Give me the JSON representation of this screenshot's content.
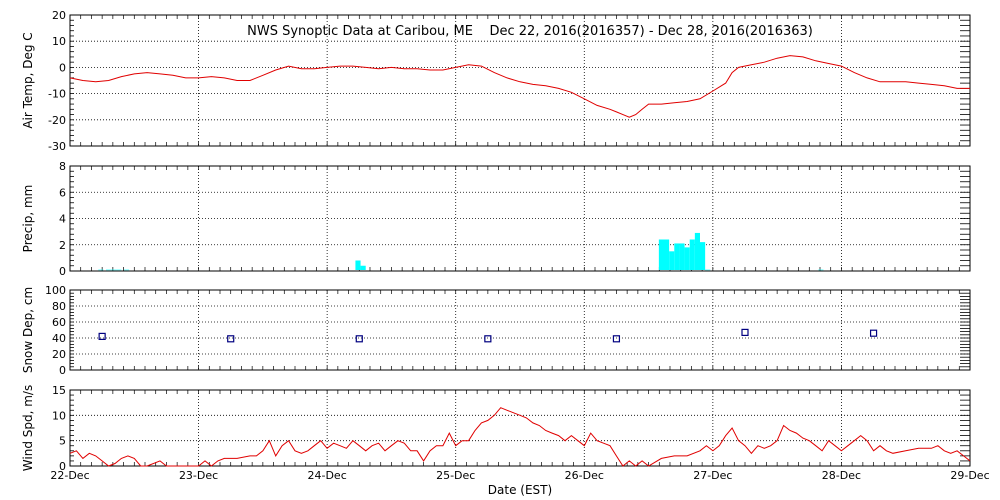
{
  "figure": {
    "title": "NWS Synoptic Data at Caribou, ME    Dec 22, 2016(2016357) - Dec 28, 2016(2016363)",
    "xlabel": "Date (EST)",
    "x_ticks": [
      "22-Dec",
      "23-Dec",
      "24-Dec",
      "25-Dec",
      "26-Dec",
      "27-Dec",
      "28-Dec",
      "29-Dec"
    ]
  },
  "chart_data": [
    {
      "type": "line",
      "ylabel": "Air Temp, Deg C",
      "xlim": [
        0,
        7
      ],
      "ylim": [
        -30,
        20
      ],
      "yticks": [
        -30,
        -20,
        -10,
        0,
        10,
        20
      ],
      "grid": true,
      "color": "#e00000",
      "points": [
        [
          0,
          -4
        ],
        [
          0.1,
          -5
        ],
        [
          0.2,
          -5.5
        ],
        [
          0.3,
          -5
        ],
        [
          0.4,
          -3.5
        ],
        [
          0.5,
          -2.5
        ],
        [
          0.6,
          -2
        ],
        [
          0.7,
          -2.5
        ],
        [
          0.8,
          -3
        ],
        [
          0.9,
          -4
        ],
        [
          1.0,
          -4
        ],
        [
          1.1,
          -3.5
        ],
        [
          1.2,
          -4
        ],
        [
          1.3,
          -5
        ],
        [
          1.4,
          -5
        ],
        [
          1.5,
          -3
        ],
        [
          1.6,
          -1
        ],
        [
          1.7,
          0.5
        ],
        [
          1.8,
          -0.5
        ],
        [
          1.9,
          -0.5
        ],
        [
          2.0,
          0
        ],
        [
          2.1,
          0.5
        ],
        [
          2.2,
          0.5
        ],
        [
          2.3,
          0
        ],
        [
          2.4,
          -0.5
        ],
        [
          2.5,
          0
        ],
        [
          2.6,
          -0.5
        ],
        [
          2.7,
          -0.5
        ],
        [
          2.8,
          -1
        ],
        [
          2.9,
          -1
        ],
        [
          3.0,
          0
        ],
        [
          3.1,
          1
        ],
        [
          3.2,
          0.5
        ],
        [
          3.3,
          -2
        ],
        [
          3.4,
          -4
        ],
        [
          3.5,
          -5.5
        ],
        [
          3.6,
          -6.5
        ],
        [
          3.7,
          -7
        ],
        [
          3.8,
          -8
        ],
        [
          3.9,
          -9.5
        ],
        [
          4.0,
          -12
        ],
        [
          4.1,
          -14.5
        ],
        [
          4.2,
          -16
        ],
        [
          4.25,
          -17
        ],
        [
          4.3,
          -18
        ],
        [
          4.35,
          -19
        ],
        [
          4.4,
          -18
        ],
        [
          4.45,
          -16
        ],
        [
          4.5,
          -14
        ],
        [
          4.6,
          -14
        ],
        [
          4.7,
          -13.5
        ],
        [
          4.8,
          -13
        ],
        [
          4.9,
          -12
        ],
        [
          5.0,
          -9
        ],
        [
          5.1,
          -6
        ],
        [
          5.15,
          -2
        ],
        [
          5.2,
          0
        ],
        [
          5.3,
          1
        ],
        [
          5.4,
          2
        ],
        [
          5.5,
          3.5
        ],
        [
          5.6,
          4.5
        ],
        [
          5.7,
          4
        ],
        [
          5.8,
          2.5
        ],
        [
          5.9,
          1.5
        ],
        [
          6.0,
          0.5
        ],
        [
          6.1,
          -2
        ],
        [
          6.2,
          -4
        ],
        [
          6.3,
          -5.5
        ],
        [
          6.4,
          -5.5
        ],
        [
          6.5,
          -5.5
        ],
        [
          6.6,
          -6
        ],
        [
          6.7,
          -6.5
        ],
        [
          6.8,
          -7
        ],
        [
          6.9,
          -8
        ],
        [
          7.0,
          -8
        ]
      ]
    },
    {
      "type": "bar",
      "ylabel": "Precip, mm",
      "xlim": [
        0,
        7
      ],
      "ylim": [
        0,
        8
      ],
      "yticks": [
        0,
        2,
        4,
        6,
        8
      ],
      "grid": true,
      "color": "#00ffff",
      "bar_width": 0.04,
      "bars": [
        [
          0.22,
          0.1
        ],
        [
          0.28,
          0.1
        ],
        [
          0.32,
          0.1
        ],
        [
          0.36,
          0.1
        ],
        [
          0.42,
          0.1
        ],
        [
          2.22,
          0.8
        ],
        [
          2.26,
          0.4
        ],
        [
          4.58,
          2.4
        ],
        [
          4.62,
          2.4
        ],
        [
          4.66,
          1.5
        ],
        [
          4.7,
          2.1
        ],
        [
          4.74,
          2.1
        ],
        [
          4.78,
          1.8
        ],
        [
          4.82,
          2.4
        ],
        [
          4.86,
          2.9
        ],
        [
          4.9,
          2.2
        ],
        [
          4.94,
          0.1
        ],
        [
          5.82,
          0.1
        ]
      ]
    },
    {
      "type": "scatter",
      "ylabel": "Snow Dep, cm",
      "xlim": [
        0,
        7
      ],
      "ylim": [
        0,
        100
      ],
      "yticks": [
        0,
        20,
        40,
        60,
        80,
        100
      ],
      "grid": true,
      "color": "#000080",
      "marker": "square",
      "points": [
        [
          0.25,
          42
        ],
        [
          1.25,
          39
        ],
        [
          2.25,
          39
        ],
        [
          3.25,
          39
        ],
        [
          4.25,
          39
        ],
        [
          5.25,
          47
        ],
        [
          6.25,
          46
        ]
      ]
    },
    {
      "type": "line",
      "ylabel": "Wind Spd, m/s",
      "xlim": [
        0,
        7
      ],
      "ylim": [
        0,
        15
      ],
      "yticks": [
        0,
        5,
        10,
        15
      ],
      "grid": true,
      "color": "#e00000",
      "points": [
        [
          0,
          2.5
        ],
        [
          0.05,
          3
        ],
        [
          0.1,
          1.5
        ],
        [
          0.15,
          2.5
        ],
        [
          0.2,
          2
        ],
        [
          0.25,
          1
        ],
        [
          0.3,
          0
        ],
        [
          0.35,
          0.5
        ],
        [
          0.4,
          1.5
        ],
        [
          0.45,
          2
        ],
        [
          0.5,
          1.5
        ],
        [
          0.55,
          0
        ],
        [
          0.6,
          0
        ],
        [
          0.7,
          1
        ],
        [
          0.75,
          0
        ],
        [
          0.8,
          0
        ],
        [
          0.9,
          0
        ],
        [
          1.0,
          0
        ],
        [
          1.05,
          1
        ],
        [
          1.1,
          0
        ],
        [
          1.15,
          1
        ],
        [
          1.2,
          1.5
        ],
        [
          1.3,
          1.5
        ],
        [
          1.4,
          2
        ],
        [
          1.45,
          2
        ],
        [
          1.5,
          3
        ],
        [
          1.55,
          5
        ],
        [
          1.6,
          2
        ],
        [
          1.65,
          4
        ],
        [
          1.7,
          5
        ],
        [
          1.75,
          3
        ],
        [
          1.8,
          2.5
        ],
        [
          1.85,
          3
        ],
        [
          1.9,
          4
        ],
        [
          1.95,
          5
        ],
        [
          2.0,
          3.5
        ],
        [
          2.05,
          4.5
        ],
        [
          2.1,
          4
        ],
        [
          2.15,
          3.5
        ],
        [
          2.2,
          5
        ],
        [
          2.25,
          4
        ],
        [
          2.3,
          3
        ],
        [
          2.35,
          4
        ],
        [
          2.4,
          4.5
        ],
        [
          2.45,
          3
        ],
        [
          2.5,
          4
        ],
        [
          2.55,
          5
        ],
        [
          2.6,
          4.5
        ],
        [
          2.65,
          3
        ],
        [
          2.7,
          3
        ],
        [
          2.75,
          1
        ],
        [
          2.8,
          3
        ],
        [
          2.85,
          4
        ],
        [
          2.9,
          4
        ],
        [
          2.95,
          6.5
        ],
        [
          3.0,
          4
        ],
        [
          3.05,
          5
        ],
        [
          3.1,
          5
        ],
        [
          3.15,
          7
        ],
        [
          3.2,
          8.5
        ],
        [
          3.25,
          9
        ],
        [
          3.3,
          10
        ],
        [
          3.35,
          11.5
        ],
        [
          3.4,
          11
        ],
        [
          3.45,
          10.5
        ],
        [
          3.5,
          10
        ],
        [
          3.55,
          9.5
        ],
        [
          3.6,
          8.5
        ],
        [
          3.65,
          8
        ],
        [
          3.7,
          7
        ],
        [
          3.75,
          6.5
        ],
        [
          3.8,
          6
        ],
        [
          3.85,
          5
        ],
        [
          3.9,
          6
        ],
        [
          3.95,
          5
        ],
        [
          4.0,
          4
        ],
        [
          4.05,
          6.5
        ],
        [
          4.1,
          5
        ],
        [
          4.15,
          4.5
        ],
        [
          4.2,
          4
        ],
        [
          4.25,
          2
        ],
        [
          4.3,
          0
        ],
        [
          4.35,
          1
        ],
        [
          4.4,
          0
        ],
        [
          4.45,
          1
        ],
        [
          4.5,
          0
        ],
        [
          4.6,
          1.5
        ],
        [
          4.7,
          2
        ],
        [
          4.8,
          2
        ],
        [
          4.9,
          3
        ],
        [
          4.95,
          4
        ],
        [
          5.0,
          3
        ],
        [
          5.05,
          4
        ],
        [
          5.1,
          6
        ],
        [
          5.15,
          7.5
        ],
        [
          5.2,
          5
        ],
        [
          5.25,
          4
        ],
        [
          5.3,
          2.5
        ],
        [
          5.35,
          4
        ],
        [
          5.4,
          3.5
        ],
        [
          5.45,
          4
        ],
        [
          5.5,
          5
        ],
        [
          5.55,
          8
        ],
        [
          5.6,
          7
        ],
        [
          5.65,
          6.5
        ],
        [
          5.7,
          5.5
        ],
        [
          5.75,
          5
        ],
        [
          5.8,
          4
        ],
        [
          5.85,
          3
        ],
        [
          5.9,
          5
        ],
        [
          5.95,
          4
        ],
        [
          6.0,
          3
        ],
        [
          6.05,
          4
        ],
        [
          6.1,
          5
        ],
        [
          6.15,
          6
        ],
        [
          6.2,
          5
        ],
        [
          6.25,
          3
        ],
        [
          6.3,
          4
        ],
        [
          6.35,
          3
        ],
        [
          6.4,
          2.5
        ],
        [
          6.5,
          3
        ],
        [
          6.6,
          3.5
        ],
        [
          6.7,
          3.5
        ],
        [
          6.75,
          4
        ],
        [
          6.8,
          3
        ],
        [
          6.85,
          2.5
        ],
        [
          6.9,
          3
        ],
        [
          6.95,
          2
        ],
        [
          7.0,
          1
        ]
      ]
    }
  ]
}
